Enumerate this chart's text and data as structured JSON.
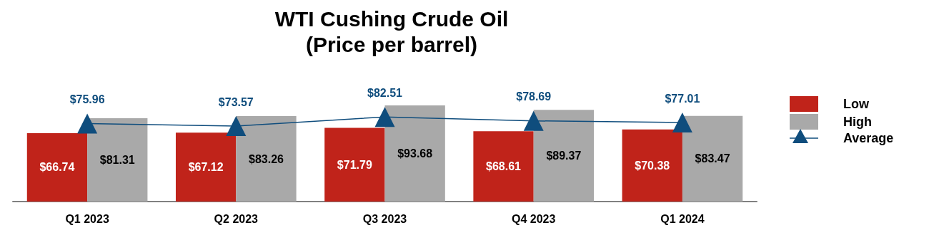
{
  "chart_data": {
    "type": "bar",
    "title": "WTI Cushing Crude Oil",
    "subtitle": "(Price per barrel)",
    "categories": [
      "Q1 2023",
      "Q2 2023",
      "Q3 2023",
      "Q4 2023",
      "Q1 2024"
    ],
    "series": [
      {
        "name": "Low",
        "color": "#c0231a",
        "values": [
          66.74,
          67.12,
          71.79,
          68.61,
          70.38
        ],
        "value_labels": [
          "$66.74",
          "$67.12",
          "$71.79",
          "$68.61",
          "$70.38"
        ]
      },
      {
        "name": "High",
        "color": "#a9a9a9",
        "values": [
          81.31,
          83.26,
          93.68,
          89.37,
          83.47
        ],
        "value_labels": [
          "$81.31",
          "$83.26",
          "$93.68",
          "$89.37",
          "$83.47"
        ]
      },
      {
        "name": "Average",
        "type": "line",
        "color": "#0f4d7d",
        "marker": "triangle",
        "values": [
          75.96,
          73.57,
          82.51,
          78.69,
          77.01
        ],
        "value_labels": [
          "$75.96",
          "$73.57",
          "$82.51",
          "$78.69",
          "$77.01"
        ]
      }
    ],
    "legend": "right"
  }
}
